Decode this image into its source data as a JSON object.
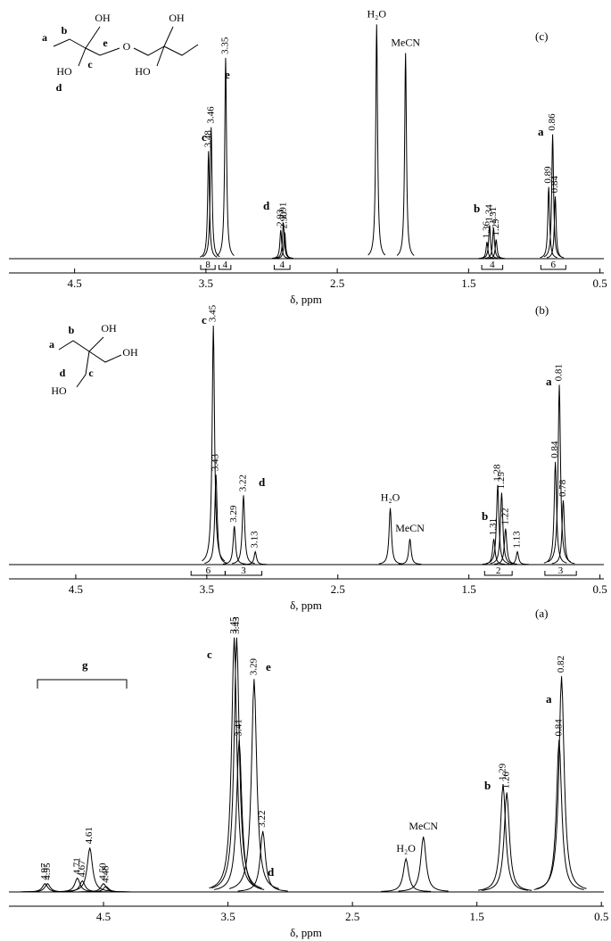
{
  "chart_data": [
    {
      "type": "spectrum",
      "panel": "(c)",
      "xlabel": "δ, ppm",
      "xlim": [
        5.0,
        0.47
      ],
      "xticks": [
        4.5,
        3.5,
        2.5,
        1.5,
        0.5
      ],
      "ylim": [
        0,
        100
      ],
      "peaks": {
        "x": [
          3.48,
          3.46,
          3.35,
          2.93,
          2.91,
          {
            "value": 2.9,
            "label": "2.90"
          },
          1.36,
          1.34,
          1.31,
          1.29,
          0.89,
          0.86,
          0.84
        ],
        "values": [
          45,
          55,
          84,
          12,
          15,
          11,
          7,
          14,
          13,
          8,
          30,
          52,
          26
        ]
      },
      "solvent_peaks": {
        "names": [
          "H₂O",
          "MeCN"
        ],
        "x": [
          2.2,
          1.98
        ],
        "values": [
          98,
          86
        ]
      },
      "assignments": [
        "c",
        "e",
        "d",
        "b",
        "a"
      ],
      "integrals": [
        8,
        4,
        4,
        4,
        6
      ],
      "structure": [
        "OH",
        "e",
        "O",
        "OH",
        "HO",
        "a",
        "b",
        "c",
        "HO",
        "d"
      ]
    },
    {
      "type": "spectrum",
      "panel": "(b)",
      "xlabel": "δ, ppm",
      "xlim": [
        5.01,
        0.47
      ],
      "xticks": [
        4.5,
        3.5,
        2.5,
        1.5,
        0.5
      ],
      "ylim": [
        0,
        100
      ],
      "peaks": {
        "x": [
          3.45,
          3.43,
          3.29,
          3.22,
          3.13,
          1.31,
          1.28,
          1.25,
          1.22,
          1.13,
          0.84,
          0.81,
          0.78
        ],
        "values": [
          93,
          35,
          15,
          27,
          5,
          10,
          31,
          28,
          14,
          5,
          40,
          70,
          25
        ]
      },
      "solvent_peaks": {
        "names": [
          "H₂O",
          "MeCN"
        ],
        "x": [
          2.1,
          1.95
        ],
        "values": [
          22,
          10
        ]
      },
      "assignments": [
        "c",
        "d",
        "b",
        "a"
      ],
      "integrals": [
        6,
        3,
        2,
        3
      ],
      "structure": [
        "a",
        "b",
        "OH",
        "OH",
        "d",
        "c",
        "HO"
      ]
    },
    {
      "type": "spectrum",
      "panel": "(a)",
      "xlabel": "δ, ppm",
      "xlim": [
        5.26,
        0.48
      ],
      "xticks": [
        4.5,
        3.5,
        2.5,
        1.5,
        0.5
      ],
      "ylim": [
        0,
        100
      ],
      "peaks": {
        "x": [
          4.97,
          4.95,
          4.71,
          4.67,
          4.61,
          {
            "value": 4.5,
            "label": "4.50"
          },
          4.48,
          3.45,
          3.43,
          3.41,
          3.29,
          3.22,
          1.29,
          1.26,
          0.84,
          0.82
        ],
        "values": [
          3,
          3,
          5,
          4,
          16,
          3,
          2,
          92,
          92,
          55,
          77,
          22,
          39,
          36,
          55,
          78
        ]
      },
      "solvent_peaks": {
        "names": [
          "H₂O",
          "MeCN"
        ],
        "x": [
          2.07,
          1.93
        ],
        "values": [
          12,
          20
        ]
      },
      "assignments": [
        "c",
        "e",
        "d",
        "b",
        "a",
        "g"
      ]
    }
  ]
}
